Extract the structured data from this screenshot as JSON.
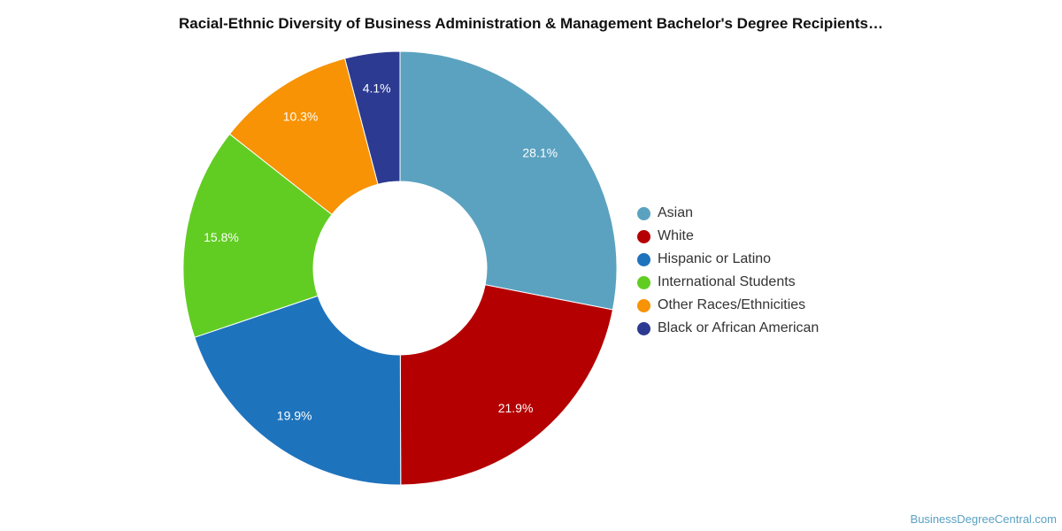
{
  "chart_data": {
    "type": "pie",
    "variant": "donut",
    "title": "Racial-Ethnic Diversity of Business Administration & Management Bachelor's Degree Recipients…",
    "legend_position": "right",
    "series": [
      {
        "name": "Asian",
        "value": 28.1,
        "label": "28.1%",
        "color": "#5ba2c0"
      },
      {
        "name": "White",
        "value": 21.9,
        "label": "21.9%",
        "color": "#b40000"
      },
      {
        "name": "Hispanic or Latino",
        "value": 19.9,
        "label": "19.9%",
        "color": "#1e73bd"
      },
      {
        "name": "International Students",
        "value": 15.8,
        "label": "15.8%",
        "color": "#61cd23"
      },
      {
        "name": "Other Races/Ethnicities",
        "value": 10.3,
        "label": "10.3%",
        "color": "#f79304"
      },
      {
        "name": "Black or African American",
        "value": 4.1,
        "label": "4.1%",
        "color": "#2c3a91"
      }
    ]
  },
  "footer": {
    "watermark": "BusinessDegreeCentral.com"
  }
}
